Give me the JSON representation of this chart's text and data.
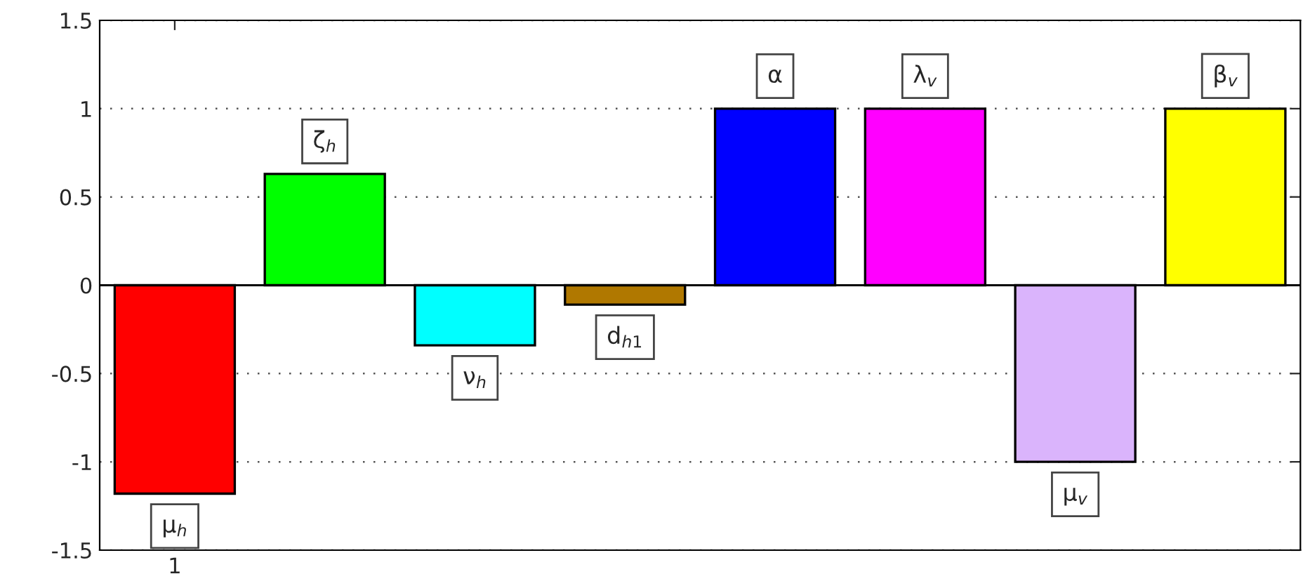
{
  "chart_data": {
    "type": "bar",
    "categories": [
      "1",
      null,
      null,
      null,
      null,
      null,
      null,
      null
    ],
    "series": [
      {
        "name": "μ$_{h}$",
        "color": "#ff0000",
        "values": [
          -1.18,
          null,
          null,
          null,
          null,
          null,
          null,
          null
        ]
      },
      {
        "name": "ζ$_{h}$",
        "color": "#00ff00",
        "values": [
          null,
          0.63,
          null,
          null,
          null,
          null,
          null,
          null
        ]
      },
      {
        "name": "ν$_{h}$",
        "color": "#00ffff",
        "values": [
          null,
          null,
          -0.34,
          null,
          null,
          null,
          null,
          null
        ]
      },
      {
        "name": "d$_{h1}$",
        "color": "#b07800",
        "values": [
          null,
          null,
          null,
          -0.11,
          null,
          null,
          null,
          null
        ]
      },
      {
        "name": "α",
        "color": "#0000ff",
        "values": [
          null,
          null,
          null,
          null,
          1,
          null,
          null,
          null
        ]
      },
      {
        "name": "λ$_{v}$",
        "color": "#ff00ff",
        "values": [
          null,
          null,
          null,
          null,
          null,
          1,
          null,
          null
        ]
      },
      {
        "name": "μ$_{v}$",
        "color": "#dab4fc",
        "values": [
          null,
          null,
          null,
          null,
          null,
          null,
          -1,
          null
        ]
      },
      {
        "name": "β$_{v}$",
        "color": "#ffff00",
        "values": [
          null,
          null,
          null,
          null,
          null,
          null,
          null,
          1
        ]
      }
    ],
    "ylim": [
      -1.5,
      1.5
    ],
    "yticks": [
      -1.5,
      -1,
      -0.5,
      0,
      0.5,
      1,
      1.5
    ],
    "grid": "y"
  }
}
